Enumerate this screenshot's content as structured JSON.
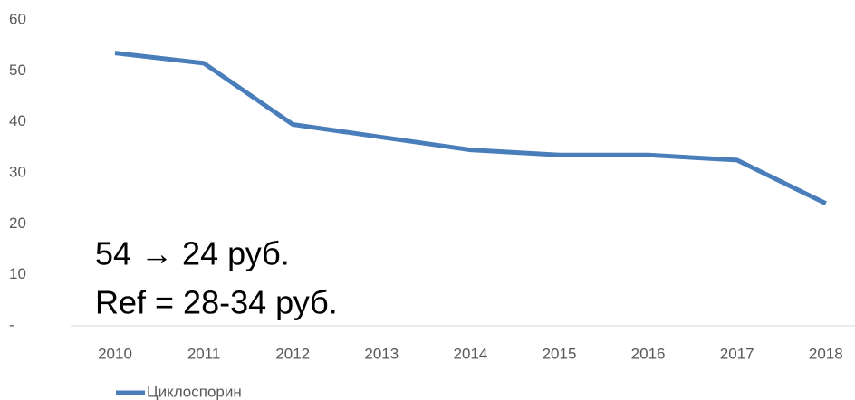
{
  "chart_data": {
    "type": "line",
    "categories": [
      "2010",
      "2011",
      "2012",
      "2013",
      "2014",
      "2015",
      "2016",
      "2017",
      "2018"
    ],
    "series": [
      {
        "name": "Циклоспорин",
        "color": "#4a7ebb",
        "values": [
          53.5,
          51.5,
          39.5,
          37,
          34.5,
          33.5,
          33.5,
          32.5,
          24
        ]
      }
    ],
    "ylim": [
      0,
      60
    ],
    "yticks": [
      {
        "value": 0,
        "label": "-"
      },
      10,
      20,
      30,
      40,
      50,
      60
    ],
    "annotations": [
      "54 → 24 руб.",
      "Ref = 28-34 руб."
    ],
    "legend": "bottom-left"
  }
}
